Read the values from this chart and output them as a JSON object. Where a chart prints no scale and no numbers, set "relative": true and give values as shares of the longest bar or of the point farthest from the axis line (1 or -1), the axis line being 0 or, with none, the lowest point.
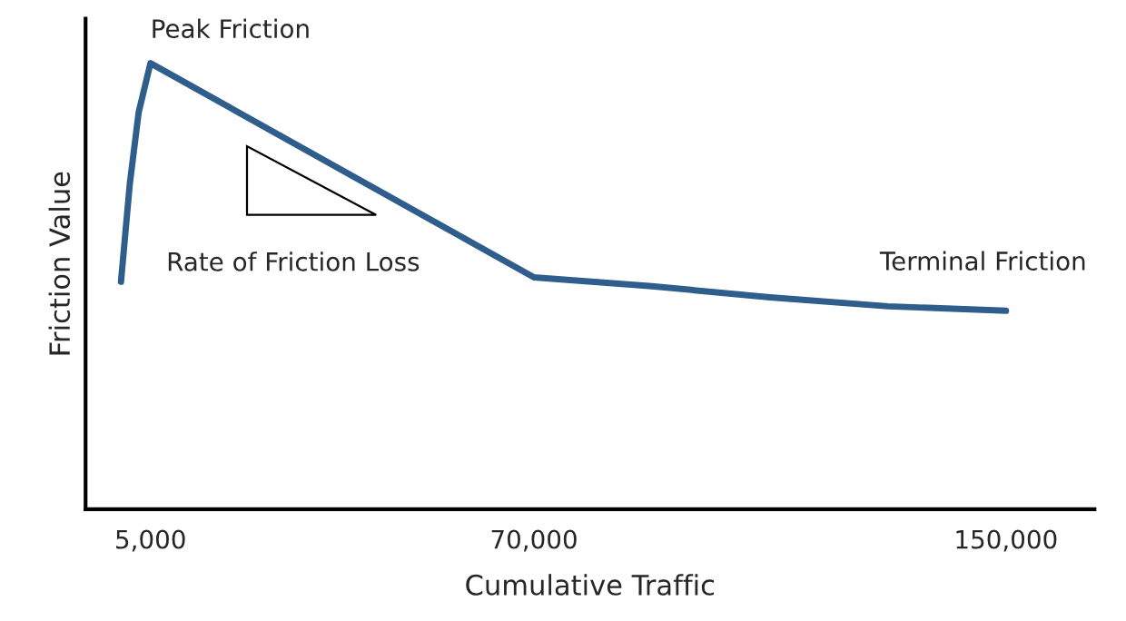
{
  "chart_data": {
    "type": "line",
    "relative": true,
    "xlabel": "Cumulative Traffic",
    "ylabel": "Friction Value",
    "x": [
      0,
      1500,
      3000,
      5000,
      70000,
      90000,
      110000,
      130000,
      150000
    ],
    "xlim": [
      -6000,
      165000
    ],
    "xticks": [
      {
        "value": 5000,
        "label": "5,000"
      },
      {
        "value": 70000,
        "label": "70,000"
      },
      {
        "value": 150000,
        "label": "150,000"
      }
    ],
    "tick_labels": "x",
    "grid": false,
    "legend": false,
    "marker": "none",
    "line_style": "solid",
    "series": [
      {
        "color": "#2f5d8c",
        "values": [
          0.51,
          0.73,
          0.89,
          1.0,
          0.52,
          0.5,
          0.475,
          0.455,
          0.445
        ]
      }
    ],
    "annotations": [
      {
        "text": "Peak Friction",
        "x": 5000,
        "y": 1.0
      },
      "Rate of Friction Loss",
      {
        "text": "Terminal Friction",
        "x": 150000,
        "y": 0.445
      }
    ]
  }
}
